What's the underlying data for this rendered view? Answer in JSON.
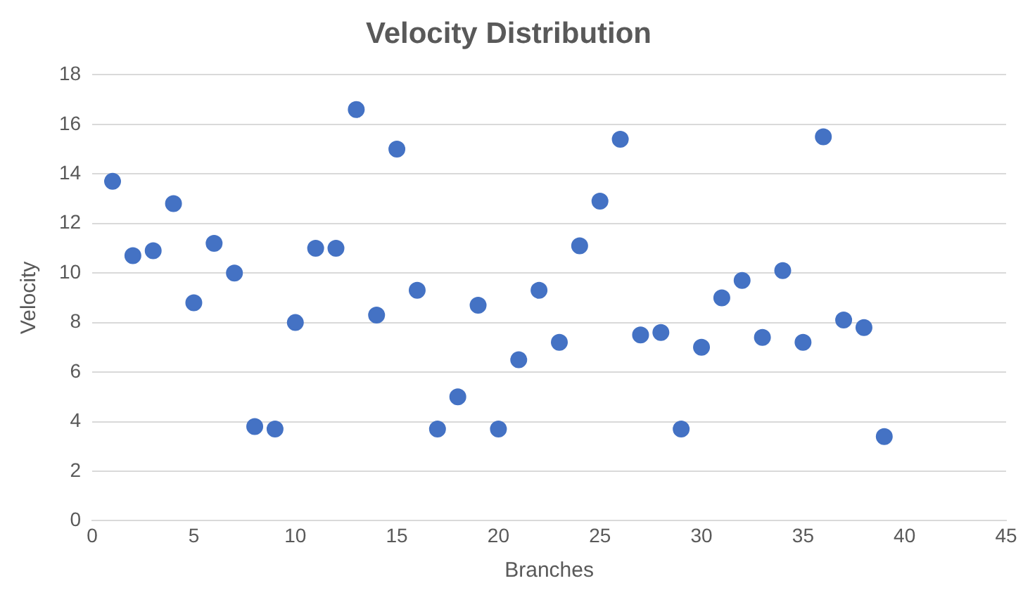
{
  "chart_data": {
    "type": "scatter",
    "title": "Velocity Distribution",
    "xlabel": "Branches",
    "ylabel": "Velocity",
    "x": [
      1,
      2,
      3,
      4,
      5,
      6,
      7,
      8,
      9,
      10,
      11,
      12,
      13,
      14,
      15,
      16,
      17,
      18,
      19,
      20,
      21,
      22,
      23,
      24,
      25,
      26,
      27,
      28,
      29,
      30,
      31,
      32,
      33,
      34,
      35,
      36,
      37,
      38,
      39
    ],
    "values": [
      13.7,
      10.7,
      10.9,
      12.8,
      8.8,
      11.2,
      10.0,
      3.8,
      3.7,
      8.0,
      11.0,
      11.0,
      16.6,
      8.3,
      15.0,
      9.3,
      3.7,
      5.0,
      8.7,
      3.7,
      6.5,
      9.3,
      7.2,
      11.1,
      12.9,
      15.4,
      7.5,
      7.6,
      3.7,
      7.0,
      9.0,
      9.7,
      7.4,
      10.1,
      7.2,
      15.5,
      8.1,
      7.8,
      3.4
    ],
    "color": "#4472c4",
    "marker": "circle",
    "xlim": [
      0,
      45
    ],
    "xticks": [
      0,
      5,
      10,
      15,
      20,
      25,
      30,
      35,
      40,
      45
    ],
    "ylim": [
      0,
      18
    ],
    "yticks": [
      0,
      2,
      4,
      6,
      8,
      10,
      12,
      14,
      16,
      18
    ],
    "grid": "y",
    "legend": false
  }
}
